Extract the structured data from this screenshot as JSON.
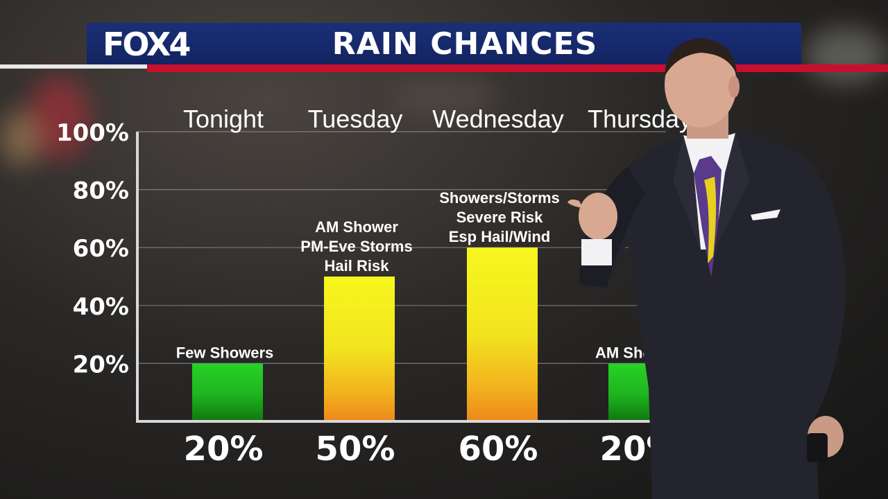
{
  "header": {
    "logo": "FOX4",
    "title": "RAIN CHANCES"
  },
  "colors": {
    "header_blue": "#1a2f78",
    "accent_red": "#c8102e",
    "bar_green_top": "#22cc22",
    "bar_yellow_top": "#f5f51e",
    "bar_orange_bottom": "#f08a1e"
  },
  "chart_data": {
    "type": "bar",
    "title": "RAIN CHANCES",
    "categories": [
      "Tonight",
      "Tuesday",
      "Wednesday",
      "Thursday"
    ],
    "values": [
      20,
      50,
      60,
      20
    ],
    "value_labels": [
      "20%",
      "50%",
      "60%",
      "20%"
    ],
    "annotations": [
      [
        "Few Showers"
      ],
      [
        "AM Shower",
        "PM-Eve Storms",
        "Hail Risk"
      ],
      [
        "Showers/Storms",
        "Severe Risk",
        "Esp Hail/Wind"
      ],
      [
        "AM Showers"
      ]
    ],
    "bar_colors": [
      "green",
      "yellow",
      "yellow",
      "green"
    ],
    "ylim": [
      0,
      100
    ],
    "yticks": [
      20,
      40,
      60,
      80,
      100
    ],
    "ytick_labels": [
      "20%",
      "40%",
      "60%",
      "80%",
      "100%"
    ],
    "grid": true,
    "xlabel": "",
    "ylabel": ""
  }
}
